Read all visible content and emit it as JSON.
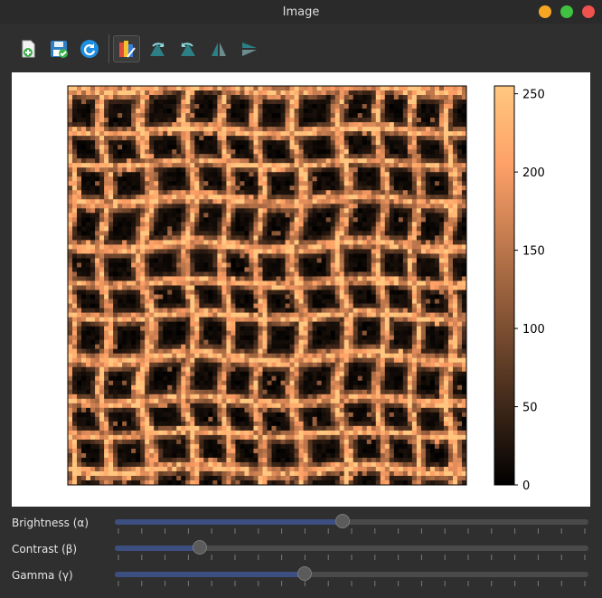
{
  "window": {
    "title": "Image",
    "buttons": [
      {
        "name": "minimize-button",
        "color": "#f6a623"
      },
      {
        "name": "maximize-button",
        "color": "#3fc23f"
      },
      {
        "name": "close-button",
        "color": "#f0524d"
      }
    ]
  },
  "toolbar": {
    "items": [
      {
        "name": "open-button",
        "icon": "open-file-icon"
      },
      {
        "name": "save-button",
        "icon": "save-icon"
      },
      {
        "name": "reset-button",
        "icon": "reset-icon"
      },
      {
        "name": "colormap-button",
        "icon": "colormap-icon",
        "active": true
      },
      {
        "name": "rotate-left-button",
        "icon": "rotate-left-icon"
      },
      {
        "name": "rotate-right-button",
        "icon": "rotate-right-icon"
      },
      {
        "name": "flip-horizontal-button",
        "icon": "flip-horizontal-icon"
      },
      {
        "name": "flip-vertical-button",
        "icon": "flip-vertical-icon"
      }
    ]
  },
  "chart_data": {
    "type": "heatmap",
    "colormap": "copper",
    "grid_size": [
      88,
      88
    ],
    "vmin": 0,
    "vmax": 255,
    "colorbar_ticks": [
      0,
      50,
      100,
      150,
      200,
      250
    ],
    "cell_pattern_period": 8.5
  },
  "sliders": [
    {
      "label": "Brightness (α)",
      "value": 0.48,
      "ticks": 21
    },
    {
      "label": "Contrast (β)",
      "value": 0.18,
      "ticks": 21
    },
    {
      "label": "Gamma (γ)",
      "value": 0.4,
      "ticks": 21
    }
  ]
}
